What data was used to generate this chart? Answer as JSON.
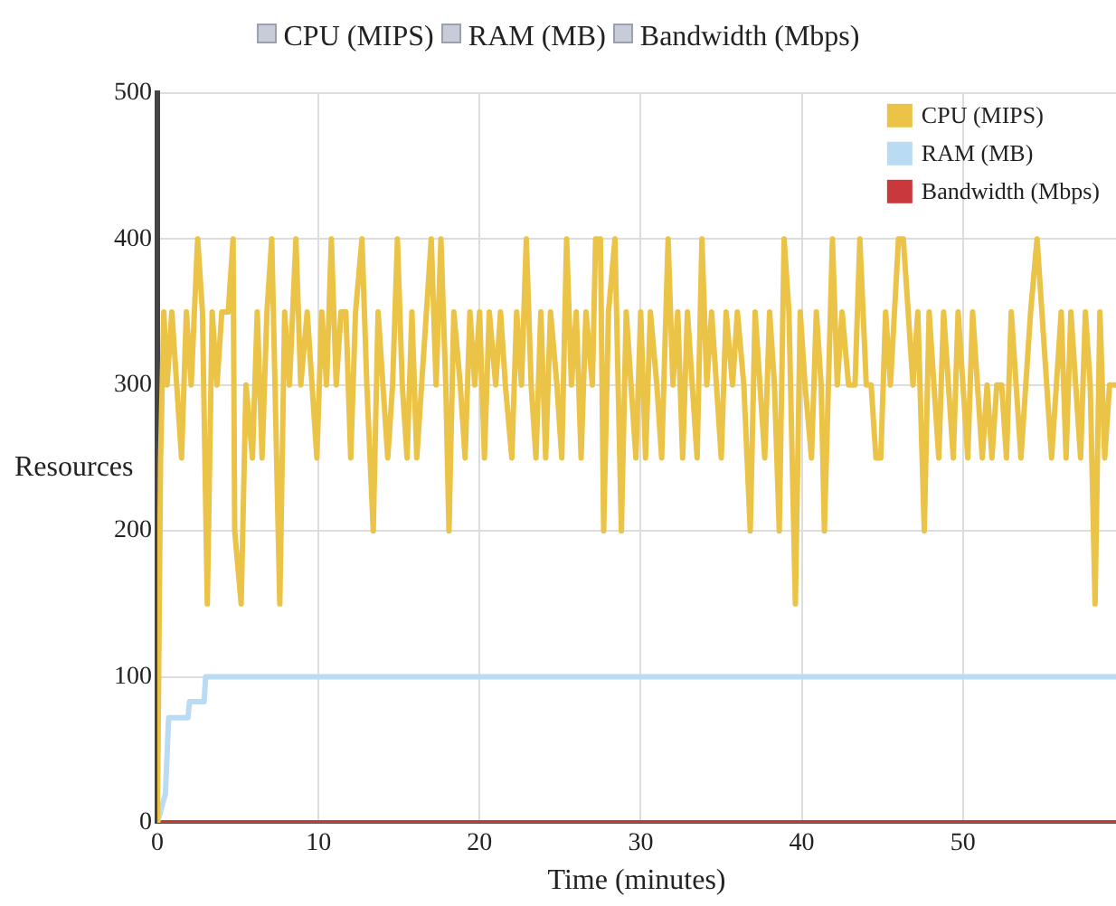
{
  "chart_data": {
    "type": "line",
    "xlabel": "Time (minutes)",
    "ylabel": "Resources",
    "xlim": [
      0,
      59.5
    ],
    "xticks": [
      0,
      10,
      20,
      30,
      40,
      50
    ],
    "ylim": [
      0,
      500
    ],
    "yticks": [
      0,
      100,
      200,
      300,
      400,
      500
    ],
    "grid": true,
    "legend": "top right",
    "marker": "none",
    "line_style": "solid",
    "series": [
      {
        "name": "CPU (MIPS)",
        "color": "#ebc347",
        "x": [
          0,
          0.2,
          0.4,
          0.6,
          0.9,
          1.2,
          1.5,
          1.8,
          2.1,
          2.5,
          2.8,
          3.1,
          3.4,
          3.7,
          4.0,
          4.4,
          4.7,
          4.8,
          5.2,
          5.5,
          5.9,
          6.2,
          6.5,
          6.8,
          7.1,
          7.6,
          7.9,
          8.2,
          8.6,
          8.9,
          9.3,
          9.6,
          9.9,
          10.2,
          10.5,
          10.8,
          11.1,
          11.4,
          11.7,
          12.0,
          12.3,
          12.7,
          13.0,
          13.4,
          13.7,
          14.0,
          14.3,
          14.6,
          14.9,
          15.2,
          15.5,
          15.8,
          16.1,
          16.4,
          16.7,
          17.0,
          17.3,
          17.6,
          17.9,
          18.1,
          18.4,
          18.8,
          19.1,
          19.4,
          19.7,
          20.0,
          20.3,
          20.6,
          21.0,
          21.3,
          21.6,
          22.0,
          22.3,
          22.6,
          22.9,
          23.2,
          23.5,
          23.8,
          24.1,
          24.4,
          24.8,
          25.1,
          25.4,
          25.7,
          26.0,
          26.3,
          26.6,
          27.0,
          27.2,
          27.5,
          27.7,
          28.0,
          28.4,
          28.8,
          29.1,
          29.4,
          29.7,
          30.0,
          30.3,
          30.6,
          31.0,
          31.3,
          31.7,
          32.0,
          32.3,
          32.6,
          32.9,
          33.2,
          33.5,
          33.8,
          34.1,
          34.4,
          34.7,
          35.0,
          35.3,
          35.7,
          36.0,
          36.4,
          36.8,
          37.1,
          37.4,
          37.7,
          38.0,
          38.3,
          38.6,
          38.9,
          39.2,
          39.6,
          39.9,
          40.2,
          40.6,
          40.9,
          41.2,
          41.4,
          41.9,
          42.2,
          42.5,
          42.9,
          43.3,
          43.6,
          44.0,
          44.3,
          44.6,
          44.9,
          45.2,
          45.5,
          46.0,
          46.3,
          46.6,
          46.9,
          47.2,
          47.6,
          47.9,
          48.2,
          48.5,
          48.8,
          49.1,
          49.4,
          49.7,
          50.0,
          50.3,
          50.6,
          50.9,
          51.2,
          51.5,
          51.8,
          52.1,
          52.4,
          52.7,
          53.0,
          53.3,
          53.6,
          53.9,
          54.2,
          54.6,
          54.9,
          55.2,
          55.5,
          55.8,
          56.1,
          56.4,
          56.7,
          57.0,
          57.3,
          57.6,
          57.9,
          58.2,
          58.5,
          58.8,
          59.1,
          59.5
        ],
        "values": [
          0,
          250,
          350,
          300,
          350,
          300,
          250,
          350,
          300,
          400,
          350,
          150,
          350,
          300,
          350,
          350,
          400,
          200,
          150,
          300,
          250,
          350,
          250,
          350,
          400,
          150,
          350,
          300,
          400,
          300,
          350,
          300,
          250,
          350,
          300,
          400,
          300,
          350,
          350,
          250,
          350,
          400,
          300,
          200,
          350,
          300,
          250,
          300,
          400,
          300,
          250,
          350,
          250,
          300,
          350,
          400,
          300,
          400,
          300,
          200,
          350,
          300,
          250,
          350,
          300,
          350,
          250,
          350,
          300,
          350,
          300,
          250,
          350,
          300,
          400,
          300,
          250,
          350,
          250,
          350,
          300,
          250,
          400,
          300,
          350,
          250,
          350,
          300,
          400,
          400,
          200,
          350,
          400,
          200,
          350,
          300,
          250,
          350,
          250,
          350,
          300,
          250,
          400,
          300,
          350,
          250,
          350,
          300,
          250,
          400,
          300,
          350,
          300,
          250,
          350,
          300,
          350,
          300,
          200,
          350,
          300,
          250,
          350,
          300,
          200,
          400,
          350,
          150,
          350,
          300,
          250,
          350,
          300,
          200,
          400,
          300,
          350,
          300,
          300,
          400,
          300,
          300,
          250,
          250,
          350,
          300,
          400,
          400,
          350,
          300,
          350,
          200,
          350,
          300,
          250,
          350,
          300,
          250,
          350,
          300,
          250,
          350,
          300,
          250,
          300,
          250,
          300,
          300,
          250,
          350,
          300,
          250,
          300,
          350,
          400,
          350,
          300,
          250,
          300,
          350,
          250,
          350,
          300,
          250,
          350,
          300,
          150,
          350,
          250,
          300,
          300
        ]
      },
      {
        "name": "RAM (MB)",
        "color": "#b9dbf3",
        "x": [
          0,
          0.5,
          0.7,
          1.9,
          2.0,
          2.9,
          3.0,
          59.5
        ],
        "values": [
          0,
          20,
          72,
          72,
          83,
          83,
          100,
          100
        ]
      },
      {
        "name": "Bandwidth (Mbps)",
        "color": "#c9393c",
        "x": [
          0,
          59.5
        ],
        "values": [
          0,
          0
        ]
      }
    ]
  }
}
